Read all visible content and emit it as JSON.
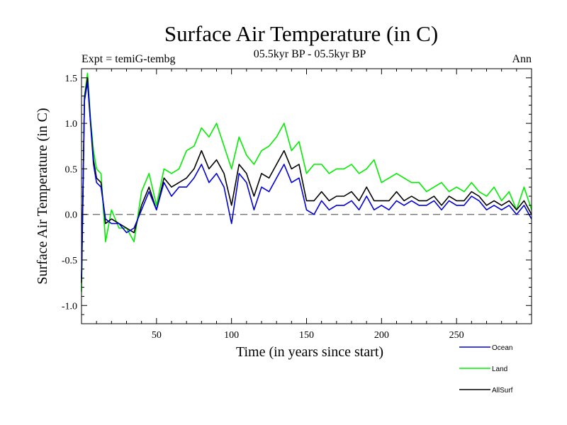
{
  "chart_data": {
    "type": "line",
    "title": "Surface Air Temperature (in C)",
    "subtitle_left": "Expt = temiG-tembg",
    "subtitle_center": "05.5kyr BP - 05.5kyr BP",
    "subtitle_right": "Ann",
    "xlabel": "Time (in years since start)",
    "ylabel": "Surface Air Temperature (in C)",
    "xlim": [
      0,
      300
    ],
    "ylim": [
      -1.2,
      1.6
    ],
    "xticks": [
      50,
      100,
      150,
      200,
      250
    ],
    "xtick_labels": [
      "50",
      "100",
      "150",
      "200",
      "250"
    ],
    "yticks": [
      -1.0,
      -0.5,
      0.0,
      0.5,
      1.0,
      1.5
    ],
    "ytick_labels": [
      "-1.0",
      "-0.5",
      "0.0",
      "0.5",
      "1.0",
      "1.5"
    ],
    "reference_line": 0.0,
    "x": [
      0,
      2,
      4,
      6,
      8,
      10,
      13,
      16,
      20,
      25,
      30,
      35,
      40,
      45,
      50,
      55,
      60,
      65,
      70,
      75,
      80,
      85,
      90,
      95,
      100,
      105,
      110,
      115,
      120,
      125,
      130,
      135,
      140,
      145,
      150,
      155,
      160,
      165,
      170,
      175,
      180,
      185,
      190,
      195,
      200,
      205,
      210,
      215,
      220,
      225,
      230,
      235,
      240,
      245,
      250,
      255,
      260,
      265,
      270,
      275,
      280,
      285,
      290,
      295,
      300
    ],
    "series": [
      {
        "name": "Ocean",
        "color": "#0000dd",
        "values": [
          -0.7,
          1.25,
          1.45,
          1.0,
          0.55,
          0.35,
          0.3,
          -0.05,
          -0.1,
          -0.1,
          -0.2,
          -0.15,
          0.05,
          0.25,
          0.05,
          0.35,
          0.2,
          0.3,
          0.3,
          0.4,
          0.55,
          0.35,
          0.45,
          0.3,
          -0.1,
          0.45,
          0.35,
          0.05,
          0.3,
          0.25,
          0.4,
          0.55,
          0.35,
          0.4,
          0.05,
          0.0,
          0.15,
          0.05,
          0.1,
          0.1,
          0.15,
          0.05,
          0.2,
          0.05,
          0.1,
          0.05,
          0.15,
          0.1,
          0.15,
          0.1,
          0.1,
          0.15,
          0.05,
          0.15,
          0.1,
          0.1,
          0.2,
          0.15,
          0.05,
          0.1,
          0.05,
          0.1,
          0.0,
          0.1,
          -0.05
        ]
      },
      {
        "name": "Land",
        "color": "#00ee00",
        "values": [
          -0.85,
          1.3,
          1.55,
          1.05,
          0.7,
          0.5,
          0.45,
          -0.3,
          0.05,
          -0.15,
          -0.15,
          -0.3,
          0.25,
          0.45,
          0.1,
          0.5,
          0.45,
          0.5,
          0.7,
          0.75,
          0.95,
          0.85,
          1.0,
          0.75,
          0.5,
          0.85,
          0.65,
          0.55,
          0.7,
          0.75,
          0.85,
          1.0,
          0.7,
          0.8,
          0.45,
          0.55,
          0.55,
          0.45,
          0.5,
          0.5,
          0.55,
          0.45,
          0.5,
          0.6,
          0.35,
          0.4,
          0.45,
          0.4,
          0.35,
          0.35,
          0.25,
          0.3,
          0.35,
          0.25,
          0.3,
          0.25,
          0.35,
          0.25,
          0.2,
          0.3,
          0.15,
          0.25,
          0.05,
          0.3,
          0.05
        ]
      },
      {
        "name": "AllSurf",
        "color": "#000000",
        "values": [
          -0.75,
          1.28,
          1.5,
          1.02,
          0.6,
          0.4,
          0.35,
          -0.1,
          -0.05,
          -0.1,
          -0.15,
          -0.2,
          0.1,
          0.3,
          0.05,
          0.4,
          0.3,
          0.35,
          0.4,
          0.5,
          0.7,
          0.5,
          0.6,
          0.45,
          0.1,
          0.55,
          0.45,
          0.2,
          0.45,
          0.4,
          0.55,
          0.7,
          0.5,
          0.55,
          0.15,
          0.15,
          0.25,
          0.15,
          0.2,
          0.2,
          0.25,
          0.15,
          0.3,
          0.15,
          0.15,
          0.15,
          0.25,
          0.15,
          0.2,
          0.15,
          0.15,
          0.2,
          0.1,
          0.2,
          0.15,
          0.15,
          0.25,
          0.2,
          0.1,
          0.15,
          0.1,
          0.15,
          0.05,
          0.15,
          0.0
        ]
      }
    ],
    "legend_position": "bottom-right"
  }
}
